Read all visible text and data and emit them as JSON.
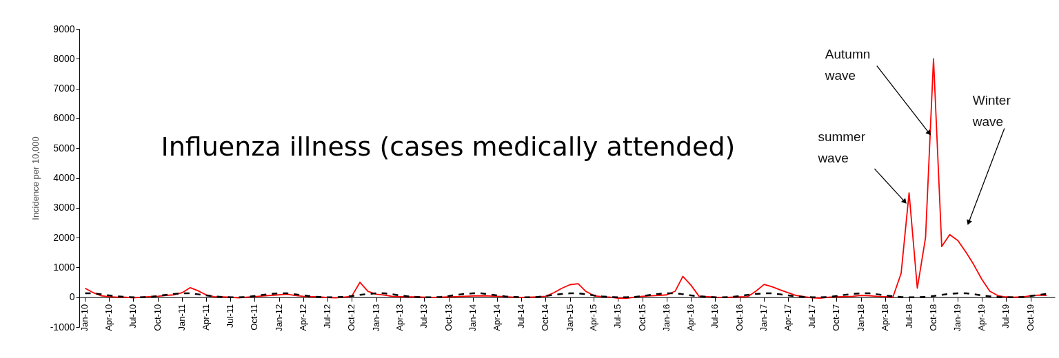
{
  "chart_data": {
    "type": "line",
    "ylabel": "Incidence per 10,000",
    "x": [
      "2010-01",
      "2010-02",
      "2010-03",
      "2010-04",
      "2010-05",
      "2010-06",
      "2010-07",
      "2010-08",
      "2010-09",
      "2010-10",
      "2010-11",
      "2010-12",
      "2011-01",
      "2011-02",
      "2011-03",
      "2011-04",
      "2011-05",
      "2011-06",
      "2011-07",
      "2011-08",
      "2011-09",
      "2011-10",
      "2011-11",
      "2011-12",
      "2012-01",
      "2012-02",
      "2012-03",
      "2012-04",
      "2012-05",
      "2012-06",
      "2012-07",
      "2012-08",
      "2012-09",
      "2012-10",
      "2012-11",
      "2012-12",
      "2013-01",
      "2013-02",
      "2013-03",
      "2013-04",
      "2013-05",
      "2013-06",
      "2013-07",
      "2013-08",
      "2013-09",
      "2013-10",
      "2013-11",
      "2013-12",
      "2014-01",
      "2014-02",
      "2014-03",
      "2014-04",
      "2014-05",
      "2014-06",
      "2014-07",
      "2014-08",
      "2014-09",
      "2014-10",
      "2014-11",
      "2014-12",
      "2015-01",
      "2015-02",
      "2015-03",
      "2015-04",
      "2015-05",
      "2015-06",
      "2015-07",
      "2015-08",
      "2015-09",
      "2015-10",
      "2015-11",
      "2015-12",
      "2016-01",
      "2016-02",
      "2016-03",
      "2016-04",
      "2016-05",
      "2016-06",
      "2016-07",
      "2016-08",
      "2016-09",
      "2016-10",
      "2016-11",
      "2016-12",
      "2017-01",
      "2017-02",
      "2017-03",
      "2017-04",
      "2017-05",
      "2017-06",
      "2017-07",
      "2017-08",
      "2017-09",
      "2017-10",
      "2017-11",
      "2017-12",
      "2018-01",
      "2018-02",
      "2018-03",
      "2018-04",
      "2018-05",
      "2018-06",
      "2018-07",
      "2018-08",
      "2018-09",
      "2018-10",
      "2018-11",
      "2018-12",
      "2019-01",
      "2019-02",
      "2019-03",
      "2019-04",
      "2019-05",
      "2019-06",
      "2019-07",
      "2019-08",
      "2019-09",
      "2019-10",
      "2019-11",
      "2019-12"
    ],
    "series": [
      {
        "color": "#ff0000",
        "line_style": "solid",
        "values": [
          300,
          150,
          50,
          20,
          0,
          0,
          -20,
          0,
          20,
          30,
          60,
          80,
          150,
          320,
          220,
          80,
          20,
          10,
          0,
          -20,
          0,
          20,
          40,
          60,
          80,
          100,
          60,
          30,
          20,
          10,
          -10,
          -20,
          0,
          30,
          500,
          200,
          100,
          70,
          30,
          20,
          10,
          10,
          0,
          -10,
          0,
          10,
          20,
          30,
          40,
          50,
          40,
          30,
          20,
          0,
          -10,
          0,
          10,
          30,
          150,
          300,
          420,
          450,
          200,
          50,
          20,
          0,
          -30,
          -40,
          0,
          30,
          50,
          60,
          80,
          200,
          700,
          400,
          30,
          20,
          0,
          -10,
          0,
          10,
          20,
          200,
          430,
          350,
          250,
          150,
          60,
          20,
          -20,
          -30,
          0,
          10,
          20,
          30,
          60,
          50,
          30,
          20,
          0,
          800,
          3500,
          300,
          2000,
          8000,
          1700,
          2100,
          1900,
          1500,
          1100,
          600,
          200,
          50,
          10,
          0,
          10,
          50,
          70,
          60
        ]
      },
      {
        "color": "#000000",
        "line_style": "dashed",
        "values": [
          130,
          130,
          100,
          60,
          30,
          10,
          0,
          0,
          10,
          40,
          80,
          110,
          130,
          130,
          100,
          60,
          30,
          10,
          0,
          0,
          10,
          40,
          80,
          110,
          130,
          130,
          100,
          60,
          30,
          10,
          0,
          0,
          10,
          40,
          80,
          110,
          130,
          130,
          100,
          60,
          30,
          10,
          0,
          0,
          10,
          40,
          80,
          110,
          130,
          130,
          100,
          60,
          30,
          10,
          0,
          0,
          10,
          40,
          80,
          110,
          130,
          130,
          100,
          60,
          30,
          10,
          0,
          0,
          10,
          40,
          80,
          110,
          130,
          130,
          100,
          60,
          30,
          10,
          0,
          0,
          10,
          40,
          80,
          110,
          130,
          130,
          100,
          60,
          30,
          10,
          0,
          0,
          10,
          40,
          80,
          110,
          130,
          130,
          100,
          60,
          30,
          10,
          0,
          0,
          10,
          40,
          80,
          110,
          130,
          130,
          100,
          60,
          30,
          10,
          0,
          0,
          10,
          40,
          80,
          110
        ]
      }
    ],
    "xlim": [
      "2009-12-10",
      "2020-01"
    ],
    "xticks": [
      {
        "value": "2010-01",
        "label": "Jan-10"
      },
      {
        "value": "2010-04",
        "label": "Apr-10"
      },
      {
        "value": "2010-07",
        "label": "Jul-10"
      },
      {
        "value": "2010-10",
        "label": "Oct-10"
      },
      {
        "value": "2011-01",
        "label": "Jan-11"
      },
      {
        "value": "2011-04",
        "label": "Apr-11"
      },
      {
        "value": "2011-07",
        "label": "Jul-11"
      },
      {
        "value": "2011-10",
        "label": "Oct-11"
      },
      {
        "value": "2012-01",
        "label": "Jan-12"
      },
      {
        "value": "2012-04",
        "label": "Apr-12"
      },
      {
        "value": "2012-07",
        "label": "Jul-12"
      },
      {
        "value": "2012-10",
        "label": "Oct-12"
      },
      {
        "value": "2013-01",
        "label": "Jan-13"
      },
      {
        "value": "2013-04",
        "label": "Apr-13"
      },
      {
        "value": "2013-07",
        "label": "Jul-13"
      },
      {
        "value": "2013-10",
        "label": "Oct-13"
      },
      {
        "value": "2014-01",
        "label": "Jan-14"
      },
      {
        "value": "2014-04",
        "label": "Apr-14"
      },
      {
        "value": "2014-07",
        "label": "Jul-14"
      },
      {
        "value": "2014-10",
        "label": "Oct-14"
      },
      {
        "value": "2015-01",
        "label": "Jan-15"
      },
      {
        "value": "2015-04",
        "label": "Apr-15"
      },
      {
        "value": "2015-07",
        "label": "Jul-15"
      },
      {
        "value": "2015-10",
        "label": "Oct-15"
      },
      {
        "value": "2016-01",
        "label": "Jan-16"
      },
      {
        "value": "2016-04",
        "label": "Apr-16"
      },
      {
        "value": "2016-07",
        "label": "Jul-16"
      },
      {
        "value": "2016-10",
        "label": "Oct-16"
      },
      {
        "value": "2017-01",
        "label": "Jan-17"
      },
      {
        "value": "2017-04",
        "label": "Apr-17"
      },
      {
        "value": "2017-07",
        "label": "Jul-17"
      },
      {
        "value": "2017-10",
        "label": "Oct-17"
      },
      {
        "value": "2018-01",
        "label": "Jan-18"
      },
      {
        "value": "2018-04",
        "label": "Apr-18"
      },
      {
        "value": "2018-07",
        "label": "Jul-18"
      },
      {
        "value": "2018-10",
        "label": "Oct-18"
      },
      {
        "value": "2019-01",
        "label": "Jan-19"
      },
      {
        "value": "2019-04",
        "label": "Apr-19"
      },
      {
        "value": "2019-07",
        "label": "Jul-19"
      },
      {
        "value": "2019-10",
        "label": "Oct-19"
      }
    ],
    "ylim": [
      -1000,
      9000
    ],
    "yticks": [
      -1000,
      0,
      1000,
      2000,
      3000,
      4000,
      5000,
      6000,
      7000,
      8000,
      9000
    ],
    "grid": false,
    "marker": "none",
    "annotations": [
      "Influenza illness (cases medically attended)",
      {
        "text": "summer\nwave",
        "x": "2018-06-15",
        "y": 3200
      },
      {
        "text": "Autumn\nwave",
        "x": "2018-09-15",
        "y": 5500
      },
      {
        "text": "Winter\nwave",
        "x": "2019-02-10",
        "y": 2500
      }
    ]
  }
}
